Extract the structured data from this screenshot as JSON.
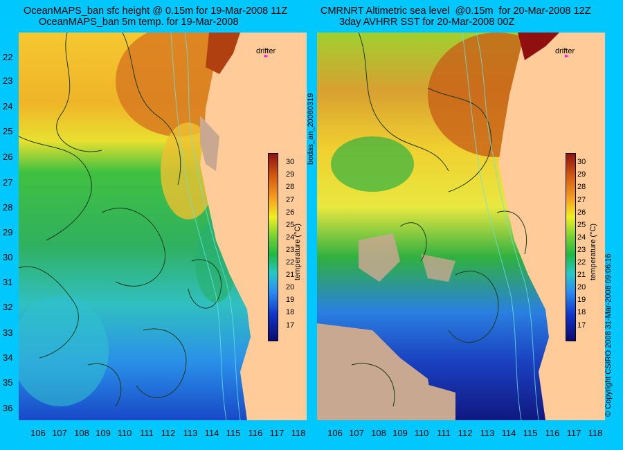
{
  "left_panel": {
    "title_line1": "OceanMAPS_ban sfc height @ 0.15m for 19-Mar-2008 11Z",
    "title_line2": "OceanMAPS_ban 5m temp. for 19-Mar-2008"
  },
  "right_panel": {
    "title_line1": "CMRNRT Altimetric sea level  @0.15m  for 20-Mar-2008 12Z",
    "title_line2": "3day AVHRR SST for 20-Mar-2008 00Z"
  },
  "latitudes": [
    "22",
    "23",
    "24",
    "25",
    "26",
    "27",
    "28",
    "29",
    "30",
    "31",
    "32",
    "33",
    "34",
    "35",
    "36"
  ],
  "longitudes": [
    "106",
    "107",
    "108",
    "109",
    "110",
    "111",
    "112",
    "113",
    "114",
    "115",
    "116",
    "117",
    "118"
  ],
  "colorbar": {
    "label": "temperature (°C)",
    "ticks": [
      "30",
      "29",
      "28",
      "27",
      "26",
      "25",
      "24",
      "23",
      "22",
      "21",
      "20",
      "19",
      "18",
      "17"
    ],
    "colors": {
      "cold": "#0a0a6e",
      "mid": "#20b840",
      "warm": "#f0f020",
      "hot": "#8c1414"
    }
  },
  "drifter_label": "drifter",
  "vertical_label": "bodas_an_20080319",
  "copyright": "© Copyright CSIRO 2008    31-Mar-2008 09:06:16"
}
